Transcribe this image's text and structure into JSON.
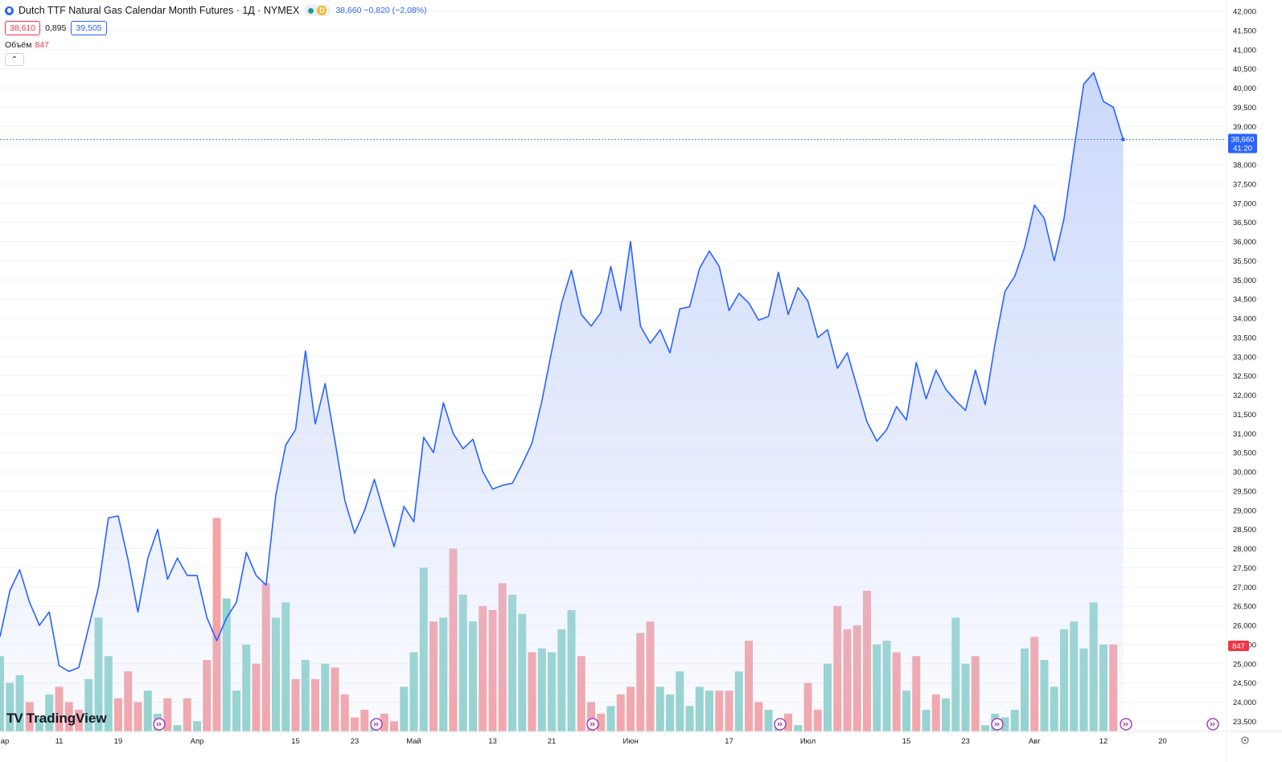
{
  "header": {
    "title": "Dutch TTF Natural Gas Calendar Month Futures · 1Д · NYMEX",
    "badge_letter": "D",
    "last_quote": "38,660  −0,820 (−2,08%)",
    "bid": "38,610",
    "spread": "0,895",
    "ask": "39,505",
    "volume_label": "Объём",
    "volume_value": "847",
    "collapse_icon": "chevron-up-icon"
  },
  "logo": {
    "text": "TradingView"
  },
  "colors": {
    "line": "#2962ff",
    "area_top": "#c9d6fb",
    "vol_up": "#26a69a",
    "vol_down": "#ef5350",
    "grid": "#f0f3fa",
    "price_badge": "#2962ff",
    "volume_badge": "#f23645",
    "event_icon": "#9c27b0"
  },
  "chart_data": {
    "type": "line",
    "x_tick_labels": [
      "ар",
      "11",
      "19",
      "Апр",
      "15",
      "23",
      "Май",
      "13",
      "21",
      "Июн",
      "17",
      "Июл",
      "15",
      "23",
      "Авг",
      "12",
      "20"
    ],
    "y_tick_labels": [
      "42,000",
      "41,500",
      "41,000",
      "40,500",
      "40,000",
      "39,500",
      "39,000",
      "38,500",
      "38,000",
      "37,500",
      "37,000",
      "36,500",
      "36,000",
      "35,500",
      "35,000",
      "34,500",
      "34,000",
      "33,500",
      "33,000",
      "32,500",
      "32,000",
      "31,500",
      "31,000",
      "30,500",
      "30,000",
      "29,500",
      "29,000",
      "28,500",
      "28,000",
      "27,500",
      "27,000",
      "26,500",
      "26,000",
      "25,500",
      "25,000",
      "24,500",
      "24,000",
      "23,500"
    ],
    "ylim": [
      23.2,
      42.1
    ],
    "series": [
      {
        "values": [
          25.7,
          26.9,
          27.45,
          26.6,
          26.0,
          26.35,
          24.95,
          24.8,
          24.9,
          25.95,
          27.0,
          28.8,
          28.85,
          27.7,
          26.35,
          27.75,
          28.5,
          27.2,
          27.75,
          27.3,
          27.3,
          26.2,
          25.6,
          26.2,
          26.6,
          27.9,
          27.3,
          27.05,
          29.4,
          30.7,
          31.1,
          33.15,
          31.25,
          32.3,
          30.8,
          29.25,
          28.4,
          29.0,
          29.8,
          28.9,
          28.05,
          29.1,
          28.7,
          30.9,
          30.5,
          31.8,
          31.0,
          30.6,
          30.85,
          30.0,
          29.55,
          29.65,
          29.7,
          30.2,
          30.75,
          31.85,
          33.15,
          34.4,
          35.25,
          34.1,
          33.8,
          34.15,
          35.35,
          34.2,
          36.0,
          33.8,
          33.35,
          33.7,
          33.1,
          34.25,
          34.3,
          35.3,
          35.75,
          35.35,
          34.2,
          34.65,
          34.4,
          33.95,
          34.05,
          35.2,
          34.1,
          34.8,
          34.45,
          33.5,
          33.7,
          32.7,
          33.1,
          32.2,
          31.3,
          30.8,
          31.1,
          31.7,
          31.35,
          32.85,
          31.9,
          32.65,
          32.15,
          31.85,
          31.6,
          32.65,
          31.75,
          33.35,
          34.7,
          35.1,
          35.85,
          36.95,
          36.6,
          35.5,
          36.6,
          38.4,
          40.1,
          40.4,
          39.65,
          39.5,
          38.66
        ]
      }
    ],
    "volume_bars": [
      [
        25.2,
        "u"
      ],
      [
        24.5,
        "u"
      ],
      [
        24.7,
        "u"
      ],
      [
        24.0,
        "d"
      ],
      [
        23.6,
        "u"
      ],
      [
        24.2,
        "u"
      ],
      [
        24.4,
        "d"
      ],
      [
        24.0,
        "d"
      ],
      [
        23.8,
        "d"
      ],
      [
        24.6,
        "u"
      ],
      [
        26.2,
        "u"
      ],
      [
        25.2,
        "u"
      ],
      [
        24.1,
        "d"
      ],
      [
        24.8,
        "d"
      ],
      [
        24.0,
        "d"
      ],
      [
        24.3,
        "u"
      ],
      [
        23.7,
        "u"
      ],
      [
        24.1,
        "d"
      ],
      [
        23.4,
        "u"
      ],
      [
        24.1,
        "d"
      ],
      [
        23.5,
        "u"
      ],
      [
        25.1,
        "d"
      ],
      [
        28.8,
        "d"
      ],
      [
        26.7,
        "u"
      ],
      [
        24.3,
        "u"
      ],
      [
        25.5,
        "u"
      ],
      [
        25.0,
        "d"
      ],
      [
        27.1,
        "d"
      ],
      [
        26.2,
        "u"
      ],
      [
        26.6,
        "u"
      ],
      [
        24.6,
        "d"
      ],
      [
        25.1,
        "u"
      ],
      [
        24.6,
        "d"
      ],
      [
        25.0,
        "u"
      ],
      [
        24.9,
        "d"
      ],
      [
        24.2,
        "d"
      ],
      [
        23.6,
        "d"
      ],
      [
        23.8,
        "d"
      ],
      [
        23.5,
        "u"
      ],
      [
        23.7,
        "d"
      ],
      [
        23.5,
        "d"
      ],
      [
        24.4,
        "u"
      ],
      [
        25.3,
        "u"
      ],
      [
        27.5,
        "u"
      ],
      [
        26.1,
        "d"
      ],
      [
        26.2,
        "u"
      ],
      [
        28.0,
        "d"
      ],
      [
        26.8,
        "u"
      ],
      [
        26.1,
        "u"
      ],
      [
        26.5,
        "d"
      ],
      [
        26.4,
        "d"
      ],
      [
        27.1,
        "d"
      ],
      [
        26.8,
        "u"
      ],
      [
        26.3,
        "u"
      ],
      [
        25.3,
        "d"
      ],
      [
        25.4,
        "u"
      ],
      [
        25.3,
        "u"
      ],
      [
        25.9,
        "u"
      ],
      [
        26.4,
        "u"
      ],
      [
        25.2,
        "d"
      ],
      [
        24.0,
        "d"
      ],
      [
        23.7,
        "d"
      ],
      [
        23.9,
        "u"
      ],
      [
        24.2,
        "d"
      ],
      [
        24.4,
        "d"
      ],
      [
        25.8,
        "d"
      ],
      [
        26.1,
        "d"
      ],
      [
        24.4,
        "u"
      ],
      [
        24.2,
        "u"
      ],
      [
        24.8,
        "u"
      ],
      [
        23.9,
        "u"
      ],
      [
        24.4,
        "u"
      ],
      [
        24.3,
        "u"
      ],
      [
        24.3,
        "d"
      ],
      [
        24.3,
        "d"
      ],
      [
        24.8,
        "u"
      ],
      [
        25.6,
        "d"
      ],
      [
        24.0,
        "d"
      ],
      [
        23.8,
        "u"
      ],
      [
        23.5,
        "u"
      ],
      [
        23.7,
        "d"
      ],
      [
        23.4,
        "u"
      ],
      [
        24.5,
        "d"
      ],
      [
        23.8,
        "d"
      ],
      [
        25.0,
        "u"
      ],
      [
        26.5,
        "d"
      ],
      [
        25.9,
        "d"
      ],
      [
        26.0,
        "d"
      ],
      [
        26.9,
        "d"
      ],
      [
        25.5,
        "u"
      ],
      [
        25.6,
        "u"
      ],
      [
        25.3,
        "d"
      ],
      [
        24.3,
        "u"
      ],
      [
        25.2,
        "d"
      ],
      [
        23.8,
        "u"
      ],
      [
        24.2,
        "d"
      ],
      [
        24.1,
        "u"
      ],
      [
        26.2,
        "u"
      ],
      [
        25.0,
        "u"
      ],
      [
        25.2,
        "d"
      ],
      [
        23.4,
        "u"
      ],
      [
        23.7,
        "u"
      ],
      [
        23.6,
        "u"
      ],
      [
        23.8,
        "u"
      ],
      [
        25.4,
        "u"
      ],
      [
        25.7,
        "d"
      ],
      [
        25.1,
        "u"
      ],
      [
        24.4,
        "u"
      ],
      [
        25.9,
        "u"
      ],
      [
        26.1,
        "u"
      ],
      [
        25.4,
        "u"
      ],
      [
        26.6,
        "u"
      ],
      [
        25.5,
        "u"
      ],
      [
        25.5,
        "d"
      ]
    ],
    "last_price": "38,660",
    "last_price_time": "41:20",
    "volume_badge": "847"
  }
}
